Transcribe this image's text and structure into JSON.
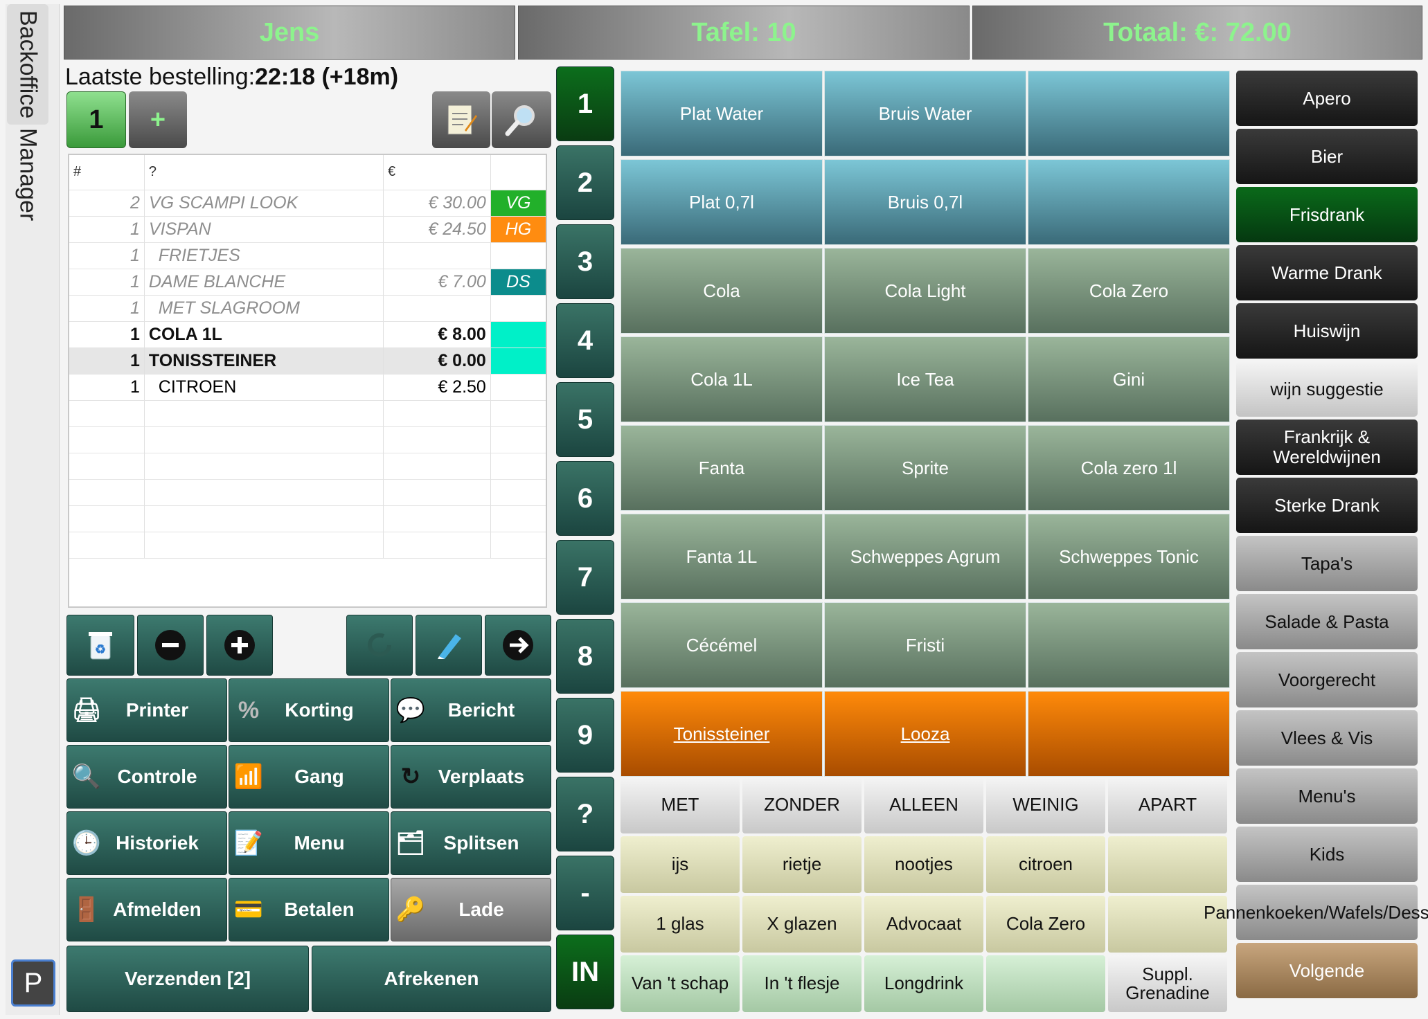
{
  "sidebar": {
    "backoffice": "Backoffice",
    "manager": "Manager",
    "p_button": "P"
  },
  "header": {
    "waiter": "Jens",
    "table": "Tafel:   10",
    "total": "Totaal: €: 72.00"
  },
  "order": {
    "last_order_label": "Laatste bestelling:",
    "last_order_value": "22:18 (+18m)",
    "course_button": "1",
    "add_course_button": "+",
    "columns": [
      "#",
      "?",
      "€"
    ],
    "rows": [
      {
        "qty": "2",
        "item": "VG SCAMPI LOOK",
        "price": "€ 30.00",
        "tag": "VG",
        "tag_color": "#22b02a",
        "state": "old"
      },
      {
        "qty": "1",
        "item": "VISPAN",
        "price": "€ 24.50",
        "tag": "HG",
        "tag_color": "#ff8c10",
        "state": "old"
      },
      {
        "qty": "1",
        "item": "  FRIETJES",
        "price": "",
        "tag": "",
        "tag_color": "",
        "state": "old"
      },
      {
        "qty": "1",
        "item": "DAME BLANCHE",
        "price": "€ 7.00",
        "tag": "DS",
        "tag_color": "#0c8c8c",
        "state": "old"
      },
      {
        "qty": "1",
        "item": "  MET SLAGROOM",
        "price": "",
        "tag": "",
        "tag_color": "",
        "state": "old"
      },
      {
        "qty": "1",
        "item": "COLA 1L",
        "price": "€ 8.00",
        "tag": "",
        "tag_color": "#00f0c8",
        "state": "cur"
      },
      {
        "qty": "1",
        "item": "TONISSTEINER",
        "price": "€ 0.00",
        "tag": "",
        "tag_color": "#00f0c8",
        "state": "cur sel"
      },
      {
        "qty": "1",
        "item": "  CITROEN",
        "price": "€ 2.50",
        "tag": "",
        "tag_color": "",
        "state": "plain"
      }
    ]
  },
  "actions": {
    "printer": "Printer",
    "korting": "Korting",
    "bericht": "Bericht",
    "controle": "Controle",
    "gang": "Gang",
    "verplaats": "Verplaats",
    "historiek": "Historiek",
    "menu": "Menu",
    "splitsen": "Splitsen",
    "afmelden": "Afmelden",
    "betalen": "Betalen",
    "lade": "Lade",
    "verzenden": "Verzenden [2]",
    "afrekenen": "Afrekenen"
  },
  "numbers": [
    "1",
    "2",
    "3",
    "4",
    "5",
    "6",
    "7",
    "8",
    "9",
    "?",
    "-",
    "IN"
  ],
  "products": [
    [
      "Plat Water",
      "Bruis Water",
      ""
    ],
    [
      "Plat 0,7l",
      "Bruis 0,7l",
      ""
    ],
    [
      "Cola",
      "Cola Light",
      "Cola Zero"
    ],
    [
      "Cola 1L",
      "Ice Tea",
      "Gini"
    ],
    [
      "Fanta",
      "Sprite",
      "Cola zero 1l"
    ],
    [
      "Fanta 1L",
      "Schweppes Agrum",
      "Schweppes Tonic"
    ],
    [
      "Cécémel",
      "Fristi",
      ""
    ],
    [
      "Tonissteiner",
      "Looza",
      ""
    ]
  ],
  "modifiers": [
    [
      "MET",
      "ZONDER",
      "ALLEEN",
      "WEINIG",
      "APART"
    ],
    [
      "ijs",
      "rietje",
      "nootjes",
      "citroen",
      ""
    ],
    [
      "1 glas",
      "X glazen",
      "Advocaat",
      "Cola Zero",
      ""
    ],
    [
      "Van 't schap",
      "In 't flesje",
      "Longdrink",
      "",
      "Suppl. Grenadine"
    ]
  ],
  "categories": [
    "Apero",
    "Bier",
    "Frisdrank",
    "Warme Drank",
    "Huiswijn",
    "wijn suggestie",
    "Frankrijk & Wereldwijnen",
    "Sterke Drank",
    "Tapa's",
    "Salade & Pasta",
    "Voorgerecht",
    "Vlees & Vis",
    "Menu's",
    "Kids",
    "Pannenkoeken/Wafels/Dessert",
    "Volgende"
  ]
}
